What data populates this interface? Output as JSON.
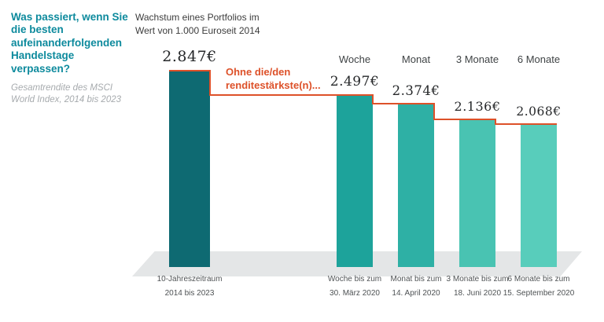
{
  "colors": {
    "teal_heading": "#0d8a9d",
    "line_orange": "#dd5129",
    "floor_gray": "#e4e6e7",
    "bar_dark": "#0e6a72"
  },
  "intro": {
    "heading": "Was passiert, wenn Sie die besten aufeinanderfolgenden Handelstage verpassen?",
    "subheading": "Gesamtrendite des MSCI World Index, 2014 bis 2023"
  },
  "chart_data": {
    "type": "bar",
    "title": "Wachstum eines Portfolios im Wert von 1.000 Euroseit 2014",
    "title_lines": [
      "Wachstum eines Portfolios im",
      "Wert von 1.000 Euroseit 2014"
    ],
    "annotation": "Ohne die/den renditestärkste(n)...",
    "annotation_lines": [
      "Ohne die/den",
      "renditestärkste(n)..."
    ],
    "unit": "EUR",
    "categories": [
      "10-Jahreszeitraum 2014 bis 2023",
      "Woche bis zum 30. März 2020",
      "Monat bis zum 14. April 2020",
      "3 Monate bis zum 18. Juni 2020",
      "6 Monate bis zum 15. September 2020"
    ],
    "values": [
      2847,
      2497,
      2374,
      2136,
      2068
    ],
    "bars": [
      {
        "header": "",
        "value": 2847,
        "value_label": "2.847€",
        "foot1": "10-Jahreszeitraum",
        "foot2": "2014 bis 2023",
        "color": "#0e6a72"
      },
      {
        "header": "Woche",
        "value": 2497,
        "value_label": "2.497€",
        "foot1": "Woche bis zum",
        "foot2": "30. März 2020",
        "color": "#1da39b"
      },
      {
        "header": "Monat",
        "value": 2374,
        "value_label": "2.374€",
        "foot1": "Monat bis zum",
        "foot2": "14. April 2020",
        "color": "#2eb0a5"
      },
      {
        "header": "3 Monate",
        "value": 2136,
        "value_label": "2.136€",
        "foot1": "3 Monate bis zum",
        "foot2": "18. Juni 2020",
        "color": "#49c3b2"
      },
      {
        "header": "6 Monate",
        "value": 2068,
        "value_label": "2.068€",
        "foot1": "6 Monate bis zum",
        "foot2": "15. September 2020",
        "color": "#58cdbb"
      }
    ]
  }
}
